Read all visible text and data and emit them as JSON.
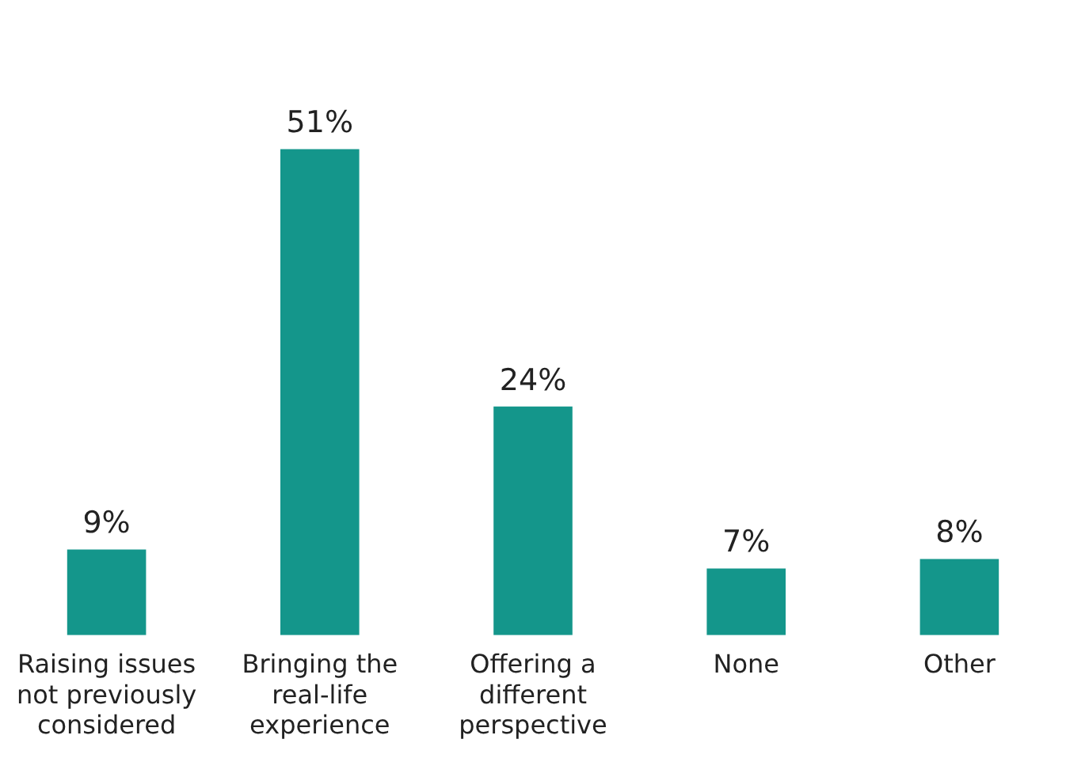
{
  "chart_data": {
    "type": "bar",
    "categories": [
      "Raising issues not previously considered",
      "Bringing the real-life experience",
      "Offering a different perspective",
      "None",
      "Other"
    ],
    "values": [
      9,
      51,
      24,
      7,
      8
    ],
    "value_labels": [
      "9%",
      "51%",
      "24%",
      "7%",
      "8%"
    ],
    "color": "#14968b",
    "grid": false,
    "legend": false
  }
}
